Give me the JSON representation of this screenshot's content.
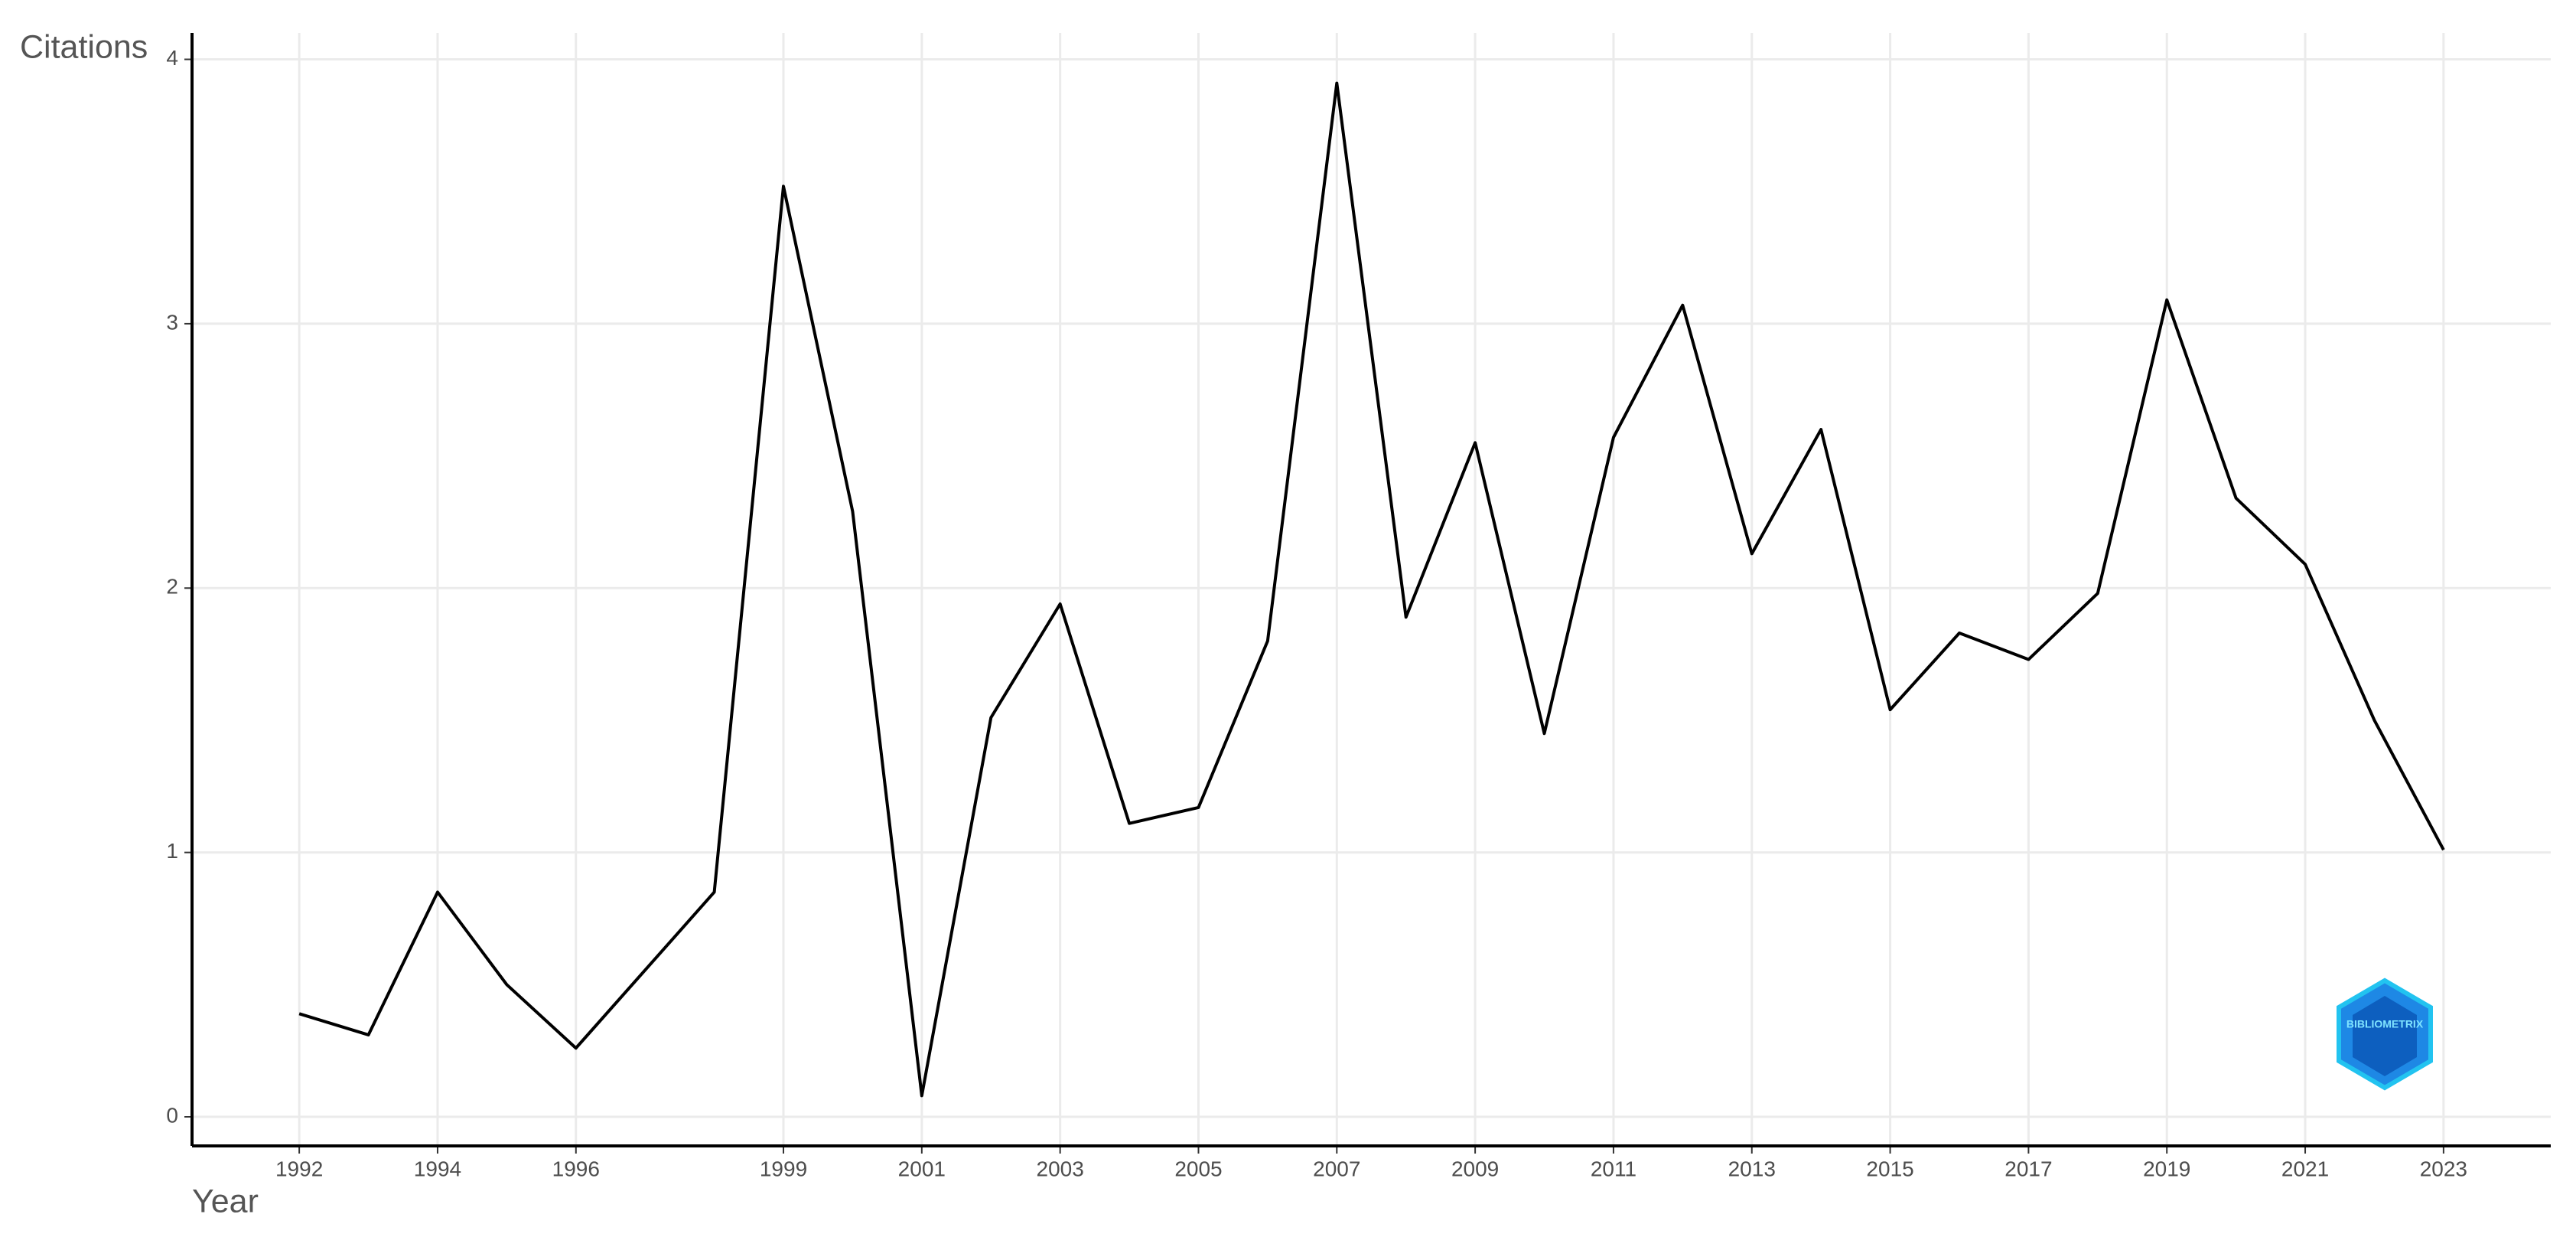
{
  "chart_data": {
    "type": "line",
    "x_label": "Year",
    "y_label": "Citations",
    "x": [
      1992,
      1993,
      1994,
      1995,
      1996,
      1998,
      1999,
      2000,
      2001,
      2002,
      2003,
      2004,
      2005,
      2006,
      2007,
      2008,
      2009,
      2010,
      2011,
      2012,
      2013,
      2014,
      2015,
      2016,
      2017,
      2018,
      2019,
      2020,
      2021,
      2022,
      2023
    ],
    "values": [
      0.39,
      0.31,
      0.85,
      0.5,
      0.26,
      0.85,
      3.52,
      2.29,
      0.08,
      1.51,
      1.94,
      1.11,
      1.17,
      1.8,
      3.91,
      1.89,
      2.55,
      1.45,
      2.57,
      3.07,
      2.13,
      2.6,
      1.54,
      1.83,
      1.73,
      1.98,
      3.09,
      2.34,
      2.09,
      1.5,
      1.01
    ],
    "color": "#000000",
    "xlim": [
      1990.45,
      2024.55
    ],
    "xticks": [
      1992,
      1994,
      1996,
      1999,
      2001,
      2003,
      2005,
      2007,
      2009,
      2011,
      2013,
      2015,
      2017,
      2019,
      2021,
      2023
    ],
    "ylim": [
      -0.11,
      4.1
    ],
    "yticks": [
      0,
      1,
      2,
      3,
      4
    ],
    "grid": true,
    "logo_text": "BIBLIOMETRIX"
  }
}
